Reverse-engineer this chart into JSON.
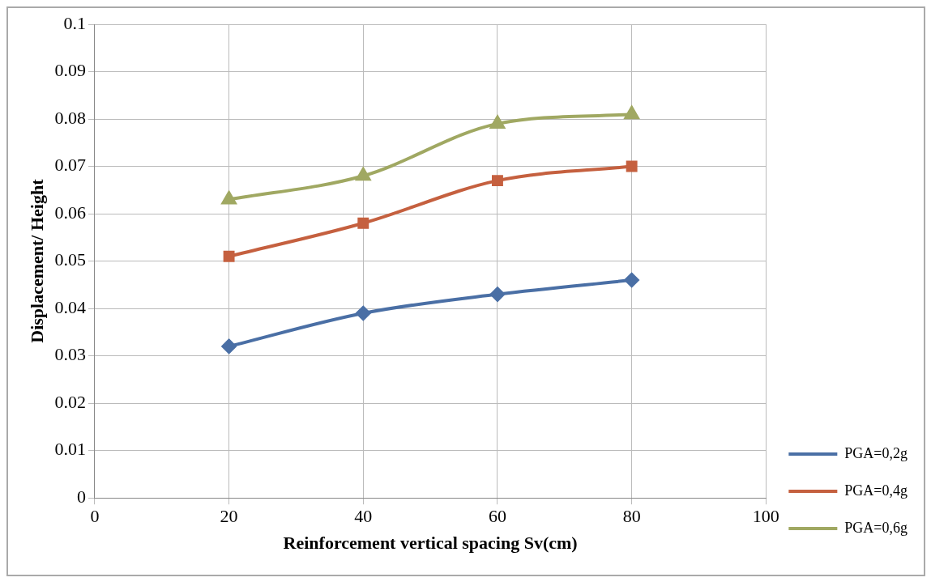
{
  "chart_data": {
    "type": "line",
    "xlabel": "Reinforcement vertical spacing Sv(cm)",
    "ylabel": "Displacement/ Height",
    "x": [
      20,
      40,
      60,
      80
    ],
    "series": [
      {
        "name": "PGA=0,2g",
        "color": "#4a6fa5",
        "marker": "diamond",
        "values": [
          0.032,
          0.039,
          0.043,
          0.046
        ]
      },
      {
        "name": "PGA=0,4g",
        "color": "#c5603f",
        "marker": "square",
        "values": [
          0.051,
          0.058,
          0.067,
          0.07
        ]
      },
      {
        "name": "PGA=0,6g",
        "color": "#a0a862",
        "marker": "triangle",
        "values": [
          0.063,
          0.068,
          0.079,
          0.081
        ]
      }
    ],
    "xlim": [
      0,
      100
    ],
    "xticks": [
      0,
      20,
      40,
      60,
      80,
      100
    ],
    "ylim": [
      0,
      0.1
    ],
    "yticks": [
      0,
      0.01,
      0.02,
      0.03,
      0.04,
      0.05,
      0.06,
      0.07,
      0.08,
      0.09,
      0.1
    ],
    "grid": true,
    "legend": "bottom right",
    "line_style": "solid"
  }
}
